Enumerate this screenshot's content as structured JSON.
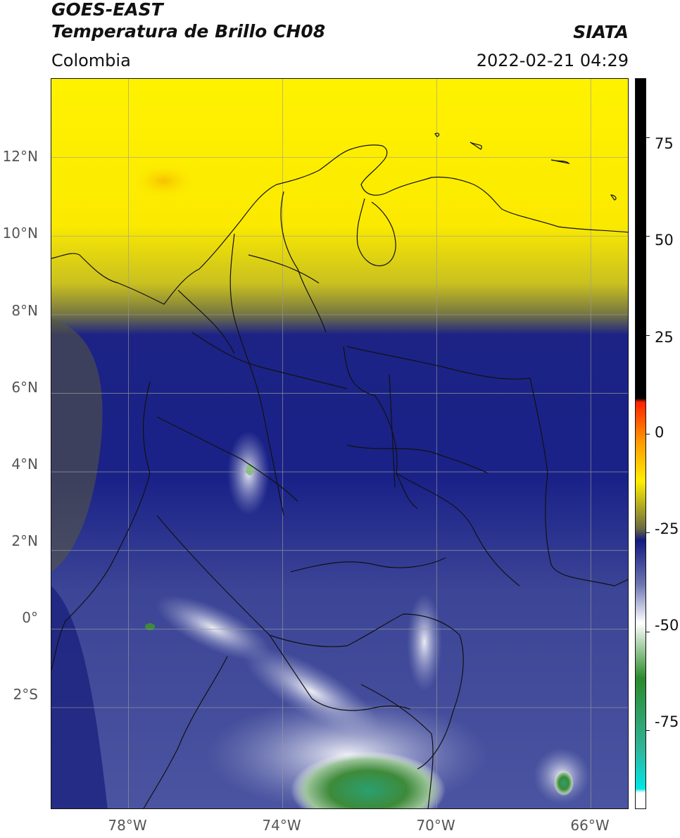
{
  "header": {
    "satellite": "GOES-EAST",
    "product": "Temperatura de Brillo CH08",
    "region": "Colombia",
    "brand": "SIATA",
    "timestamp": "2022-02-21 04:29"
  },
  "map": {
    "lat_labels": [
      "12°N",
      "10°N",
      "8°N",
      "6°N",
      "4°N",
      "2°N",
      "0°",
      "2°S"
    ],
    "lon_labels": [
      "78°W",
      "74°W",
      "70°W",
      "66°W"
    ],
    "lat_range": [
      -4.6,
      14.0
    ],
    "lon_range": [
      -80.0,
      -65.0
    ],
    "graticule_lat": [
      12,
      10,
      8,
      6,
      4,
      2,
      0,
      -2
    ],
    "graticule_lon": [
      -78,
      -74,
      -70,
      -66
    ]
  },
  "colorbar": {
    "labels": [
      "75",
      "50",
      "25",
      "0",
      "-25",
      "-50",
      "-75"
    ],
    "values": [
      75,
      50,
      25,
      0,
      -25,
      -50,
      -75
    ],
    "range": [
      -95,
      90
    ],
    "unit": "",
    "colors": {
      "hot": "#000000",
      "warm_red": "#ff2200",
      "orange": "#ff9900",
      "yellow": "#ffee00",
      "olive": "#6b6b40",
      "navy": "#141a80",
      "slate": "#6b73b0",
      "white": "#ffffff",
      "green": "#2a8a2a",
      "teal": "#2fb59a",
      "cyan": "#00e5e5"
    }
  }
}
